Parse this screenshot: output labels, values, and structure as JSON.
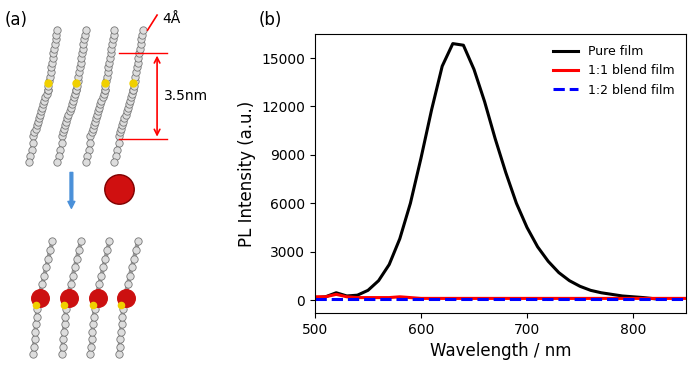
{
  "diagram": {
    "panel_label": "(a)",
    "spacing_labels": [
      "4Å",
      "3.5nm"
    ]
  },
  "chart_data": {
    "type": "line",
    "title": "(b)",
    "x_label": "Wavelength / nm",
    "y_label": "PL Intensity (a.u.)",
    "x": [
      500,
      510,
      520,
      530,
      540,
      550,
      560,
      570,
      580,
      590,
      600,
      610,
      620,
      630,
      640,
      650,
      660,
      670,
      680,
      690,
      700,
      710,
      720,
      730,
      740,
      750,
      760,
      770,
      780,
      790,
      800,
      810,
      820,
      830,
      840,
      850
    ],
    "series": [
      {
        "name": "Pure film",
        "color": "#000000",
        "line_style": "solid",
        "values": [
          150,
          200,
          450,
          250,
          300,
          600,
          1200,
          2200,
          3800,
          6000,
          8800,
          11800,
          14500,
          15900,
          15800,
          14300,
          12300,
          10000,
          7900,
          6000,
          4500,
          3300,
          2400,
          1700,
          1200,
          850,
          600,
          450,
          350,
          250,
          200,
          150,
          80,
          null,
          null,
          null
        ]
      },
      {
        "name": "1:1 blend film",
        "color": "#ff0000",
        "line_style": "solid",
        "values": [
          200,
          200,
          350,
          200,
          150,
          150,
          150,
          150,
          200,
          150,
          100,
          100,
          100,
          100,
          100,
          100,
          100,
          100,
          100,
          100,
          100,
          100,
          100,
          100,
          100,
          100,
          100,
          100,
          100,
          100,
          100,
          100,
          100,
          100,
          100,
          100
        ]
      },
      {
        "name": "1:2 blend film",
        "color": "#0000ff",
        "line_style": "dashed",
        "values": [
          50,
          50,
          50,
          50,
          50,
          50,
          50,
          50,
          50,
          50,
          50,
          50,
          50,
          50,
          50,
          50,
          50,
          50,
          50,
          50,
          50,
          50,
          50,
          50,
          50,
          50,
          50,
          50,
          50,
          50,
          50,
          50,
          50,
          50,
          50,
          50
        ]
      }
    ],
    "xlim": [
      500,
      850
    ],
    "xticks": [
      500,
      600,
      700,
      800
    ],
    "ylim": [
      -800,
      16500
    ],
    "yticks": [
      0,
      3000,
      6000,
      9000,
      12000,
      15000
    ],
    "legend": "upper right"
  }
}
